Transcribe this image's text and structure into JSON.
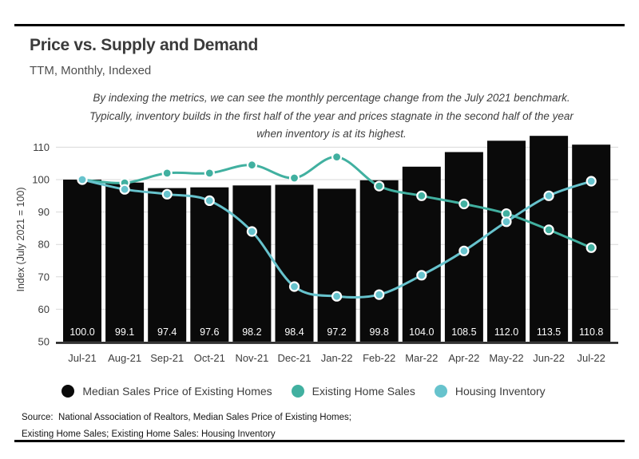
{
  "header": {
    "title": "Price vs. Supply and Demand",
    "subtitle": "TTM, Monthly, Indexed"
  },
  "annotation": {
    "line1": "By indexing the metrics, we can see the monthly percentage change from the July 2021 benchmark.",
    "line2": "Typically, inventory builds in the first half of the year and prices stagnate in the second half of the year",
    "line3": "when inventory is at its highest."
  },
  "chart_data": {
    "type": "combo_bar_line",
    "title": "Price vs. Supply and Demand",
    "subtitle": "TTM, Monthly, Indexed",
    "categories": [
      "Jul-21",
      "Aug-21",
      "Sep-21",
      "Oct-21",
      "Nov-21",
      "Dec-21",
      "Jan-22",
      "Feb-22",
      "Mar-22",
      "Apr-22",
      "May-22",
      "Jun-22",
      "Jul-22"
    ],
    "xlabel": "",
    "ylabel": "Index (July 2021 = 100)",
    "ylim": [
      50,
      114
    ],
    "yticks": [
      50,
      60,
      70,
      80,
      90,
      100,
      110
    ],
    "grid": true,
    "legend_position": "bottom",
    "series": [
      {
        "name": "Median Sales Price of Existing Homes",
        "type": "bar",
        "color": "#0a0a0a",
        "label_color": "#ffffff",
        "values": [
          100.0,
          99.1,
          97.4,
          97.6,
          98.2,
          98.4,
          97.2,
          99.8,
          104.0,
          108.5,
          112.0,
          113.5,
          110.8
        ]
      },
      {
        "name": "Existing Home Sales",
        "type": "line",
        "color": "#41b0a0",
        "values": [
          100,
          99,
          102,
          102,
          104.5,
          100.5,
          107,
          98,
          95,
          92.5,
          89.5,
          84.5,
          79
        ]
      },
      {
        "name": "Housing Inventory",
        "type": "line",
        "color": "#67c3cd",
        "values": [
          100,
          97,
          95.5,
          93.5,
          84,
          67,
          64,
          64.5,
          70.5,
          78,
          87,
          95,
          99.5
        ]
      }
    ]
  },
  "legend": {
    "items": [
      {
        "label": "Median Sales Price of Existing Homes",
        "color": "#0a0a0a"
      },
      {
        "label": "Existing Home Sales",
        "color": "#41b0a0"
      },
      {
        "label": "Housing Inventory",
        "color": "#67c3cd"
      }
    ]
  },
  "source": {
    "line1": "Source:  National Association of Realtors, Median Sales Price of Existing Homes;",
    "line2": "Existing Home Sales; Existing Home Sales: Housing Inventory"
  }
}
